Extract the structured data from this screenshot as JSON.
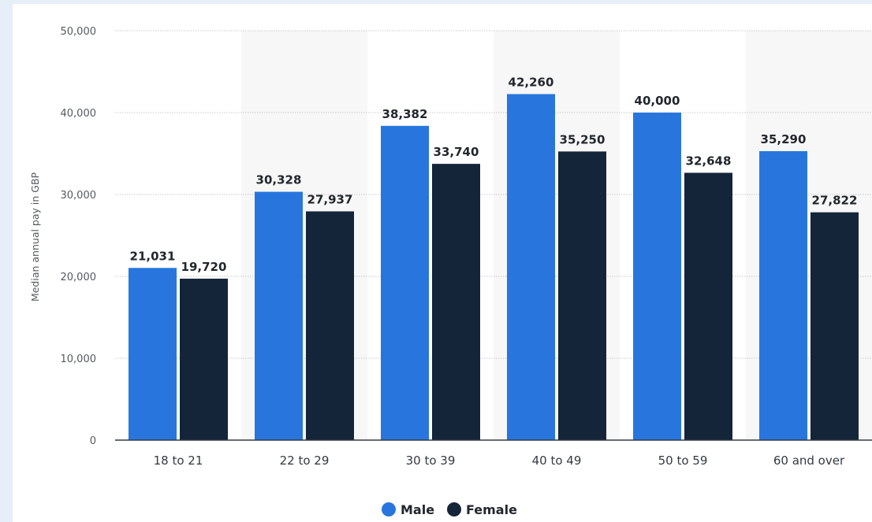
{
  "chart_data": {
    "type": "bar",
    "title": "",
    "xlabel": "",
    "ylabel": "Median annual pay in GBP",
    "categories": [
      "18 to 21",
      "22 to 29",
      "30 to 39",
      "40 to 49",
      "50 to 59",
      "60 and over"
    ],
    "series": [
      {
        "name": "Male",
        "color": "#2876dd",
        "values": [
          21031,
          30328,
          38382,
          42260,
          40000,
          35290
        ]
      },
      {
        "name": "Female",
        "color": "#14253a",
        "values": [
          19720,
          27937,
          33740,
          35250,
          32648,
          27822
        ]
      }
    ],
    "ylim": [
      0,
      50000
    ],
    "yticks": [
      0,
      10000,
      20000,
      30000,
      40000,
      50000
    ],
    "grid": true,
    "legend": "bottom-center",
    "alternating_band_color": "#f7f7f7"
  }
}
